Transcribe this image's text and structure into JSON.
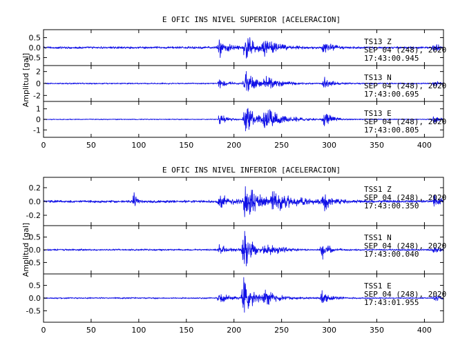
{
  "chart_data": [
    {
      "type": "line",
      "title": "E OFIC INS NIVEL SUPERIOR [ACELERACION]",
      "ylabel": "Amplitud [gal]",
      "xlim": [
        0,
        420
      ],
      "xticks": [
        "0",
        "50",
        "100",
        "150",
        "200",
        "250",
        "300",
        "350",
        "400"
      ],
      "show_xtick_labels": true,
      "color": "#1010e6",
      "panels": [
        {
          "station": "TS13",
          "component": "Z",
          "date": "SEP 04 (248), 2020",
          "time": "17:43:00.945",
          "ylim": [
            -0.9,
            0.9
          ],
          "yticks": [
            "0.5",
            "0.0",
            "-0.5"
          ],
          "noise": 0.06,
          "events": [
            [
              185,
              0.5,
              8,
              3
            ],
            [
              212,
              0.85,
              10,
              3
            ],
            [
              232,
              0.35,
              14,
              2
            ],
            [
              295,
              0.4,
              7,
              3
            ],
            [
              410,
              0.25,
              5,
              2
            ]
          ]
        },
        {
          "station": "TS13",
          "component": "N",
          "date": "SEP 04 (248), 2020",
          "time": "17:43:00.695",
          "ylim": [
            -3,
            3
          ],
          "yticks": [
            "2",
            "0",
            "-2"
          ],
          "noise": 0.12,
          "events": [
            [
              185,
              0.8,
              8,
              3
            ],
            [
              212,
              2.5,
              9,
              3
            ],
            [
              232,
              1.2,
              14,
              2
            ],
            [
              295,
              1.1,
              7,
              3
            ],
            [
              410,
              0.6,
              5,
              2
            ]
          ]
        },
        {
          "station": "TS13",
          "component": "E",
          "date": "SEP 04 (248), 2020",
          "time": "17:43:00.805",
          "ylim": [
            -1.7,
            1.7
          ],
          "yticks": [
            "1",
            "0",
            "-1"
          ],
          "noise": 0.05,
          "events": [
            [
              185,
              0.5,
              8,
              3
            ],
            [
              212,
              1.6,
              10,
              3
            ],
            [
              232,
              1.2,
              18,
              2
            ],
            [
              295,
              0.8,
              7,
              3
            ],
            [
              410,
              0.5,
              5,
              2
            ]
          ]
        }
      ]
    },
    {
      "type": "line",
      "title": "E OFIC INS NIVEL INFERIOR [ACELERACION]",
      "ylabel": "Amplitud [gal]",
      "xlim": [
        0,
        420
      ],
      "xticks": [
        "0",
        "50",
        "100",
        "150",
        "200",
        "250",
        "300",
        "350",
        "400"
      ],
      "show_xtick_labels": true,
      "color": "#1010e6",
      "panels": [
        {
          "station": "TSS1",
          "component": "Z",
          "date": "SEP 04 (248), 2020",
          "time": "17:43:00.350",
          "ylim": [
            -0.35,
            0.35
          ],
          "yticks": [
            "0.2",
            "0.0",
            "-0.2"
          ],
          "noise": 0.02,
          "events": [
            [
              95,
              0.15,
              2,
              2
            ],
            [
              185,
              0.12,
              10,
              3
            ],
            [
              212,
              0.3,
              12,
              3
            ],
            [
              240,
              0.15,
              25,
              2
            ],
            [
              295,
              0.12,
              8,
              3
            ],
            [
              410,
              0.1,
              6,
              2
            ]
          ]
        },
        {
          "station": "TSS1",
          "component": "N",
          "date": "SEP 04 (248), 2020",
          "time": "17:43:00.040",
          "ylim": [
            -0.95,
            0.95
          ],
          "yticks": [
            "0.5",
            "0.0",
            "-0.5"
          ],
          "noise": 0.035,
          "events": [
            [
              185,
              0.25,
              8,
              3
            ],
            [
              210,
              0.9,
              8,
              3
            ],
            [
              232,
              0.3,
              14,
              2
            ],
            [
              293,
              0.45,
              6,
              3
            ],
            [
              410,
              0.15,
              5,
              2
            ]
          ]
        },
        {
          "station": "TSS1",
          "component": "E",
          "date": "SEP 04 (248), 2020",
          "time": "17:43:01.955",
          "ylim": [
            -0.95,
            0.95
          ],
          "yticks": [
            "0.5",
            "0.0",
            "-0.5"
          ],
          "noise": 0.03,
          "events": [
            [
              185,
              0.25,
              8,
              3
            ],
            [
              210,
              0.85,
              9,
              3
            ],
            [
              232,
              0.3,
              14,
              2
            ],
            [
              293,
              0.35,
              7,
              3
            ],
            [
              410,
              0.15,
              5,
              2
            ]
          ]
        }
      ]
    }
  ]
}
